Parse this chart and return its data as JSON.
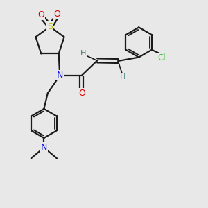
{
  "bg_color": "#e8e8e8",
  "bond_color": "#1a1a1a",
  "N_color": "#0000ee",
  "O_color": "#dd0000",
  "S_color": "#bbbb00",
  "Cl_color": "#33bb33",
  "H_color": "#447777",
  "figsize": [
    3.0,
    3.0
  ],
  "dpi": 100,
  "xlim": [
    0,
    10
  ],
  "ylim": [
    0,
    10
  ]
}
